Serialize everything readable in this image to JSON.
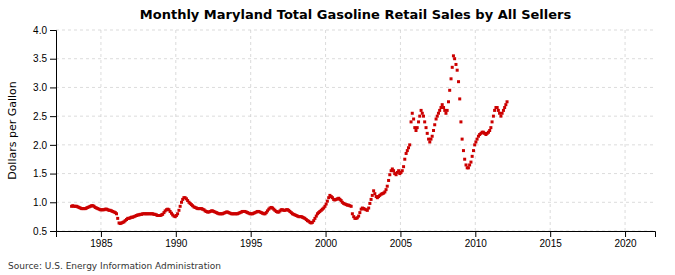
{
  "chart_data": {
    "type": "scatter",
    "title": "Monthly Maryland Total Gasoline Retail Sales by All Sellers",
    "ylabel": "Dollars per Gallon",
    "annotations": [
      "Source: U.S. Energy Information Administration"
    ],
    "color": "#cc0000",
    "marker": "square",
    "grid": true,
    "xlim": [
      1982,
      2022
    ],
    "ylim": [
      0.5,
      4.0
    ],
    "xticks": [
      1985,
      1990,
      1995,
      2000,
      2005,
      2010,
      2015,
      2020
    ],
    "yticks": [
      0.5,
      {
        "value": 1.0,
        "label": "1.0"
      },
      1.5,
      {
        "value": 2.0,
        "label": "2.0"
      },
      2.5,
      {
        "value": 3.0,
        "label": "3.0"
      },
      3.5,
      {
        "value": 4.0,
        "label": "4.0"
      }
    ],
    "x": [
      1983.04,
      1983.12,
      1983.21,
      1983.29,
      1983.38,
      1983.46,
      1983.54,
      1983.62,
      1983.71,
      1983.79,
      1983.88,
      1983.96,
      1984.04,
      1984.12,
      1984.21,
      1984.29,
      1984.38,
      1984.46,
      1984.54,
      1984.62,
      1984.71,
      1984.79,
      1984.88,
      1984.96,
      1985.04,
      1985.12,
      1985.21,
      1985.29,
      1985.38,
      1985.46,
      1985.54,
      1985.62,
      1985.71,
      1985.79,
      1985.88,
      1985.96,
      1986.04,
      1986.12,
      1986.21,
      1986.29,
      1986.38,
      1986.46,
      1986.54,
      1986.62,
      1986.71,
      1986.79,
      1986.88,
      1986.96,
      1987.04,
      1987.12,
      1987.21,
      1987.29,
      1987.38,
      1987.46,
      1987.54,
      1987.62,
      1987.71,
      1987.79,
      1987.88,
      1987.96,
      1988.04,
      1988.12,
      1988.21,
      1988.29,
      1988.38,
      1988.46,
      1988.54,
      1988.62,
      1988.71,
      1988.79,
      1988.88,
      1988.96,
      1989.04,
      1989.12,
      1989.21,
      1989.29,
      1989.38,
      1989.46,
      1989.54,
      1989.62,
      1989.71,
      1989.79,
      1989.88,
      1989.96,
      1990.04,
      1990.12,
      1990.21,
      1990.29,
      1990.38,
      1990.46,
      1990.54,
      1990.62,
      1990.71,
      1990.79,
      1990.88,
      1990.96,
      1991.04,
      1991.12,
      1991.21,
      1991.29,
      1991.38,
      1991.46,
      1991.54,
      1991.62,
      1991.71,
      1991.79,
      1991.88,
      1991.96,
      1992.04,
      1992.12,
      1992.21,
      1992.29,
      1992.38,
      1992.46,
      1992.54,
      1992.62,
      1992.71,
      1992.79,
      1992.88,
      1992.96,
      1993.04,
      1993.12,
      1993.21,
      1993.29,
      1993.38,
      1993.46,
      1993.54,
      1993.62,
      1993.71,
      1993.79,
      1993.88,
      1993.96,
      1994.04,
      1994.12,
      1994.21,
      1994.29,
      1994.38,
      1994.46,
      1994.54,
      1994.62,
      1994.71,
      1994.79,
      1994.88,
      1994.96,
      1995.04,
      1995.12,
      1995.21,
      1995.29,
      1995.38,
      1995.46,
      1995.54,
      1995.62,
      1995.71,
      1995.79,
      1995.88,
      1995.96,
      1996.04,
      1996.12,
      1996.21,
      1996.29,
      1996.38,
      1996.46,
      1996.54,
      1996.62,
      1996.71,
      1996.79,
      1996.88,
      1996.96,
      1997.04,
      1997.12,
      1997.21,
      1997.29,
      1997.38,
      1997.46,
      1997.54,
      1997.62,
      1997.71,
      1997.79,
      1997.88,
      1997.96,
      1998.04,
      1998.12,
      1998.21,
      1998.29,
      1998.38,
      1998.46,
      1998.54,
      1998.62,
      1998.71,
      1998.79,
      1998.88,
      1998.96,
      1999.04,
      1999.12,
      1999.21,
      1999.29,
      1999.38,
      1999.46,
      1999.54,
      1999.62,
      1999.71,
      1999.79,
      1999.88,
      1999.96,
      2000.04,
      2000.12,
      2000.21,
      2000.29,
      2000.38,
      2000.46,
      2000.54,
      2000.62,
      2000.71,
      2000.79,
      2000.88,
      2000.96,
      2001.04,
      2001.12,
      2001.21,
      2001.29,
      2001.38,
      2001.46,
      2001.54,
      2001.62,
      2001.71,
      2001.79,
      2001.88,
      2001.96,
      2002.04,
      2002.12,
      2002.21,
      2002.29,
      2002.38,
      2002.46,
      2002.54,
      2002.62,
      2002.71,
      2002.79,
      2002.88,
      2002.96,
      2003.04,
      2003.12,
      2003.21,
      2003.29,
      2003.38,
      2003.46,
      2003.54,
      2003.62,
      2003.71,
      2003.79,
      2003.88,
      2003.96,
      2004.04,
      2004.12,
      2004.21,
      2004.29,
      2004.38,
      2004.46,
      2004.54,
      2004.62,
      2004.71,
      2004.79,
      2004.88,
      2004.96,
      2005.04,
      2005.12,
      2005.21,
      2005.29,
      2005.38,
      2005.46,
      2005.54,
      2005.62,
      2005.71,
      2005.79,
      2005.88,
      2005.96,
      2006.04,
      2006.12,
      2006.21,
      2006.29,
      2006.38,
      2006.46,
      2006.54,
      2006.62,
      2006.71,
      2006.79,
      2006.88,
      2006.96,
      2007.04,
      2007.12,
      2007.21,
      2007.29,
      2007.38,
      2007.46,
      2007.54,
      2007.62,
      2007.71,
      2007.79,
      2007.88,
      2007.96,
      2008.04,
      2008.12,
      2008.21,
      2008.29,
      2008.38,
      2008.46,
      2008.54,
      2008.62,
      2008.71,
      2008.79,
      2008.88,
      2008.96,
      2009.04,
      2009.12,
      2009.21,
      2009.29,
      2009.38,
      2009.46,
      2009.54,
      2009.62,
      2009.71,
      2009.79,
      2009.88,
      2009.96,
      2010.04,
      2010.12,
      2010.21,
      2010.29,
      2010.38,
      2010.46,
      2010.54,
      2010.62,
      2010.71,
      2010.79,
      2010.88,
      2010.96,
      2011.04,
      2011.12,
      2011.21,
      2011.29,
      2011.38,
      2011.46,
      2011.54,
      2011.62,
      2011.71,
      2011.79,
      2011.88,
      2011.96,
      2012.04,
      2012.12
    ],
    "values": [
      0.93,
      0.94,
      0.93,
      0.93,
      0.93,
      0.92,
      0.91,
      0.9,
      0.89,
      0.89,
      0.89,
      0.89,
      0.9,
      0.91,
      0.92,
      0.93,
      0.94,
      0.94,
      0.93,
      0.91,
      0.9,
      0.89,
      0.88,
      0.87,
      0.87,
      0.87,
      0.87,
      0.88,
      0.88,
      0.87,
      0.86,
      0.86,
      0.85,
      0.84,
      0.83,
      0.82,
      0.8,
      0.72,
      0.64,
      0.63,
      0.64,
      0.65,
      0.66,
      0.68,
      0.7,
      0.72,
      0.72,
      0.73,
      0.74,
      0.74,
      0.75,
      0.76,
      0.77,
      0.78,
      0.78,
      0.79,
      0.79,
      0.8,
      0.8,
      0.8,
      0.8,
      0.8,
      0.8,
      0.8,
      0.8,
      0.8,
      0.79,
      0.79,
      0.78,
      0.77,
      0.77,
      0.77,
      0.78,
      0.79,
      0.82,
      0.85,
      0.87,
      0.88,
      0.87,
      0.84,
      0.81,
      0.78,
      0.76,
      0.75,
      0.77,
      0.8,
      0.86,
      0.93,
      1.0,
      1.05,
      1.08,
      1.08,
      1.06,
      1.03,
      1.0,
      0.98,
      0.96,
      0.94,
      0.92,
      0.91,
      0.9,
      0.89,
      0.89,
      0.89,
      0.89,
      0.88,
      0.87,
      0.85,
      0.84,
      0.83,
      0.83,
      0.84,
      0.85,
      0.85,
      0.84,
      0.83,
      0.82,
      0.81,
      0.8,
      0.8,
      0.8,
      0.8,
      0.81,
      0.82,
      0.83,
      0.83,
      0.82,
      0.81,
      0.8,
      0.8,
      0.8,
      0.8,
      0.8,
      0.8,
      0.81,
      0.82,
      0.83,
      0.84,
      0.84,
      0.84,
      0.83,
      0.82,
      0.81,
      0.8,
      0.8,
      0.8,
      0.81,
      0.82,
      0.83,
      0.84,
      0.84,
      0.83,
      0.82,
      0.81,
      0.8,
      0.8,
      0.82,
      0.85,
      0.88,
      0.9,
      0.91,
      0.9,
      0.88,
      0.86,
      0.84,
      0.83,
      0.83,
      0.85,
      0.87,
      0.87,
      0.86,
      0.86,
      0.87,
      0.87,
      0.86,
      0.84,
      0.82,
      0.8,
      0.79,
      0.78,
      0.77,
      0.76,
      0.75,
      0.75,
      0.75,
      0.74,
      0.73,
      0.72,
      0.7,
      0.68,
      0.67,
      0.65,
      0.64,
      0.65,
      0.68,
      0.72,
      0.76,
      0.8,
      0.82,
      0.84,
      0.86,
      0.88,
      0.9,
      0.93,
      0.97,
      1.02,
      1.08,
      1.12,
      1.1,
      1.08,
      1.05,
      1.04,
      1.05,
      1.06,
      1.07,
      1.05,
      1.03,
      1.0,
      0.98,
      0.97,
      0.96,
      0.95,
      0.95,
      0.94,
      0.93,
      0.8,
      0.75,
      0.72,
      0.72,
      0.73,
      0.76,
      0.82,
      0.88,
      0.9,
      0.89,
      0.88,
      0.87,
      0.86,
      0.9,
      0.98,
      1.05,
      1.12,
      1.2,
      1.15,
      1.1,
      1.08,
      1.1,
      1.12,
      1.14,
      1.15,
      1.16,
      1.18,
      1.22,
      1.28,
      1.38,
      1.48,
      1.55,
      1.58,
      1.55,
      1.5,
      1.48,
      1.52,
      1.55,
      1.5,
      1.52,
      1.55,
      1.62,
      1.75,
      1.85,
      1.9,
      1.95,
      2.0,
      2.4,
      2.55,
      2.45,
      2.3,
      2.25,
      2.3,
      2.4,
      2.5,
      2.6,
      2.55,
      2.5,
      2.4,
      2.3,
      2.2,
      2.1,
      2.05,
      2.1,
      2.15,
      2.25,
      2.35,
      2.45,
      2.5,
      2.55,
      2.6,
      2.65,
      2.7,
      2.65,
      2.6,
      2.55,
      2.6,
      2.75,
      2.95,
      3.15,
      3.35,
      3.55,
      3.5,
      3.4,
      3.3,
      3.1,
      2.8,
      2.4,
      2.1,
      1.9,
      1.75,
      1.65,
      1.6,
      1.6,
      1.65,
      1.7,
      1.8,
      1.9,
      2.0,
      2.05,
      2.1,
      2.15,
      2.18,
      2.2,
      2.22,
      2.22,
      2.2,
      2.18,
      2.2,
      2.22,
      2.25,
      2.3,
      2.4,
      2.5,
      2.6,
      2.65,
      2.65,
      2.6,
      2.55,
      2.5,
      2.55,
      2.6,
      2.65,
      2.7,
      2.75
    ]
  }
}
